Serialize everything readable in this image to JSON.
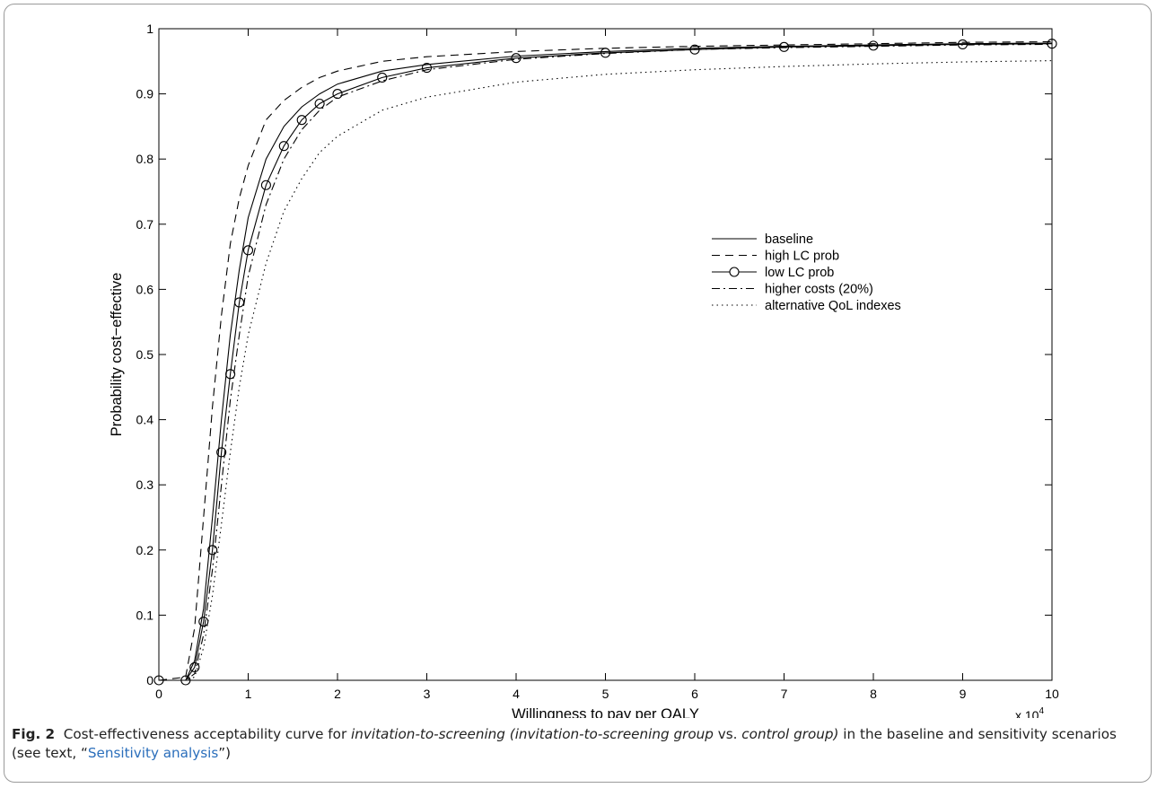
{
  "chart_data": {
    "type": "line",
    "xlabel": "Willingness to pay per QALY",
    "ylabel": "Probability cost−effective",
    "x_multiplier_label": "x 10",
    "x_multiplier_exp": "4",
    "xlim": [
      0,
      100000
    ],
    "ylim": [
      0,
      1
    ],
    "x_tick_labels": [
      "0",
      "1",
      "2",
      "3",
      "4",
      "5",
      "6",
      "7",
      "8",
      "9",
      "10"
    ],
    "y_tick_labels": [
      "0",
      "0.1",
      "0.2",
      "0.3",
      "0.4",
      "0.5",
      "0.6",
      "0.7",
      "0.8",
      "0.9",
      "1"
    ],
    "grid": false,
    "legend_position": "center-right",
    "x": [
      0,
      3000,
      4000,
      5000,
      6000,
      7000,
      8000,
      9000,
      10000,
      12000,
      14000,
      16000,
      18000,
      20000,
      25000,
      30000,
      40000,
      50000,
      60000,
      70000,
      80000,
      90000,
      100000
    ],
    "series": [
      {
        "name": "baseline",
        "style": "solid",
        "marker": "none",
        "values": [
          0,
          0,
          0.03,
          0.11,
          0.25,
          0.4,
          0.53,
          0.63,
          0.71,
          0.8,
          0.85,
          0.88,
          0.9,
          0.915,
          0.935,
          0.945,
          0.958,
          0.965,
          0.97,
          0.973,
          0.975,
          0.977,
          0.978
        ]
      },
      {
        "name": "high LC prob",
        "style": "dashed",
        "marker": "none",
        "values": [
          0,
          0.005,
          0.08,
          0.25,
          0.42,
          0.56,
          0.67,
          0.74,
          0.79,
          0.86,
          0.89,
          0.91,
          0.925,
          0.935,
          0.95,
          0.957,
          0.965,
          0.97,
          0.973,
          0.975,
          0.977,
          0.979,
          0.98
        ]
      },
      {
        "name": "low LC prob",
        "style": "solid",
        "marker": "circle",
        "values": [
          0,
          0,
          0.02,
          0.09,
          0.2,
          0.35,
          0.47,
          0.58,
          0.66,
          0.76,
          0.82,
          0.86,
          0.885,
          0.9,
          0.925,
          0.94,
          0.955,
          0.963,
          0.968,
          0.972,
          0.974,
          0.976,
          0.977
        ]
      },
      {
        "name": "higher costs (20%)",
        "style": "dashdot",
        "marker": "none",
        "values": [
          0,
          0,
          0.01,
          0.07,
          0.17,
          0.3,
          0.43,
          0.53,
          0.62,
          0.73,
          0.8,
          0.845,
          0.875,
          0.895,
          0.92,
          0.937,
          0.953,
          0.962,
          0.968,
          0.971,
          0.973,
          0.975,
          0.976
        ]
      },
      {
        "name": "alternative QoL indexes",
        "style": "dotted",
        "marker": "none",
        "values": [
          0,
          0,
          0.005,
          0.05,
          0.13,
          0.24,
          0.35,
          0.45,
          0.53,
          0.64,
          0.72,
          0.77,
          0.81,
          0.835,
          0.875,
          0.895,
          0.918,
          0.93,
          0.937,
          0.942,
          0.946,
          0.949,
          0.951
        ]
      }
    ]
  },
  "caption": {
    "label": "Fig. 2",
    "text_1": "Cost-effectiveness acceptability curve for ",
    "italic_1": "invitation-to-screening (invitation-to-screening group",
    "text_2": " vs. ",
    "italic_2": "control group)",
    "text_3": " in the baseline and sensitivity scenarios (see text, “",
    "link": "Sensitivity analysis",
    "text_4": "”)"
  }
}
